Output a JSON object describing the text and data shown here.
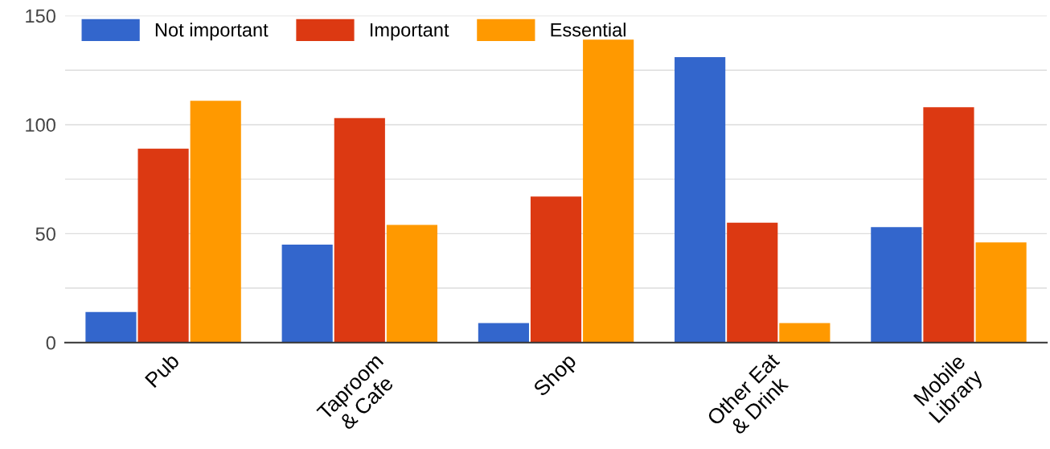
{
  "chart_data": {
    "type": "bar",
    "categories": [
      "Pub",
      "Taproom\n& Cafe",
      "Shop",
      "Other Eat\n& Drink",
      "Mobile\nLibrary"
    ],
    "series": [
      {
        "name": "Not important",
        "color": "#3366cc",
        "values": [
          14,
          45,
          9,
          131,
          53
        ]
      },
      {
        "name": "Important",
        "color": "#dc3912",
        "values": [
          89,
          103,
          67,
          55,
          108
        ]
      },
      {
        "name": "Essential",
        "color": "#ff9900",
        "values": [
          111,
          54,
          139,
          9,
          46
        ]
      }
    ],
    "ylim": [
      0,
      150
    ],
    "yticks": [
      0,
      {
        "value": 25,
        "label": null
      },
      50,
      {
        "value": 75,
        "label": null
      },
      100,
      {
        "value": 125,
        "label": null
      },
      150
    ],
    "grid": "y",
    "legend": "top left"
  }
}
